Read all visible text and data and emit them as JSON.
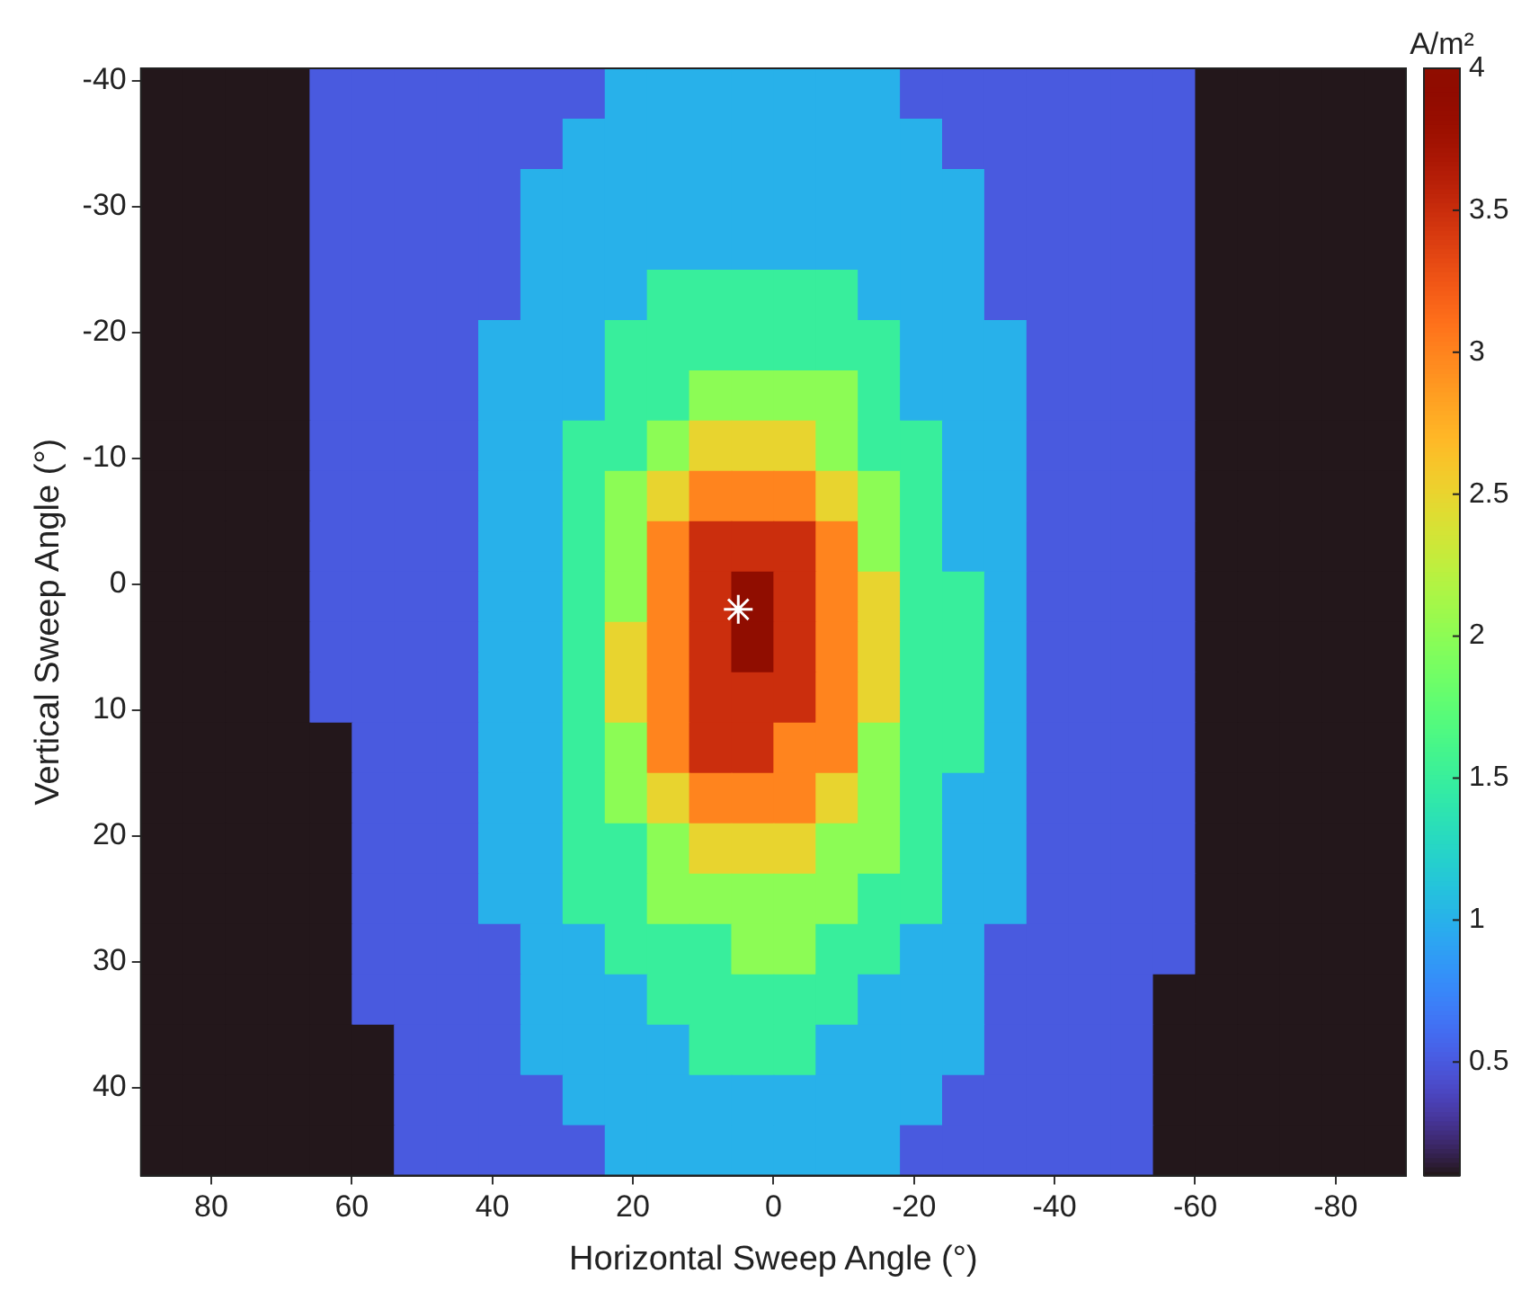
{
  "chart_data": {
    "type": "heatmap",
    "xlabel": "Horizontal Sweep Angle (°)",
    "ylabel": "Vertical Sweep Angle (°)",
    "clabel": "A/m²",
    "xlim": [
      90,
      -90
    ],
    "ylim": [
      47,
      -41
    ],
    "xticks": [
      80,
      60,
      40,
      20,
      0,
      -20,
      -40,
      -60,
      -80
    ],
    "yticks": [
      -40,
      -30,
      -20,
      -10,
      0,
      10,
      20,
      30,
      40
    ],
    "clim": [
      0.1,
      4
    ],
    "cticks": [
      0.5,
      1,
      1.5,
      2,
      2.5,
      3,
      3.5,
      4
    ],
    "x": [
      87,
      81,
      75,
      69,
      63,
      57,
      51,
      45,
      39,
      33,
      27,
      21,
      15,
      9,
      3,
      -3,
      -9,
      -15,
      -21,
      -27,
      -33,
      -39,
      -45,
      -51,
      -57,
      -63,
      -69,
      -75,
      -81,
      -87
    ],
    "y": [
      -39,
      -35,
      -31,
      -27,
      -23,
      -19,
      -15,
      -11,
      -7,
      -3,
      1,
      5,
      9,
      13,
      17,
      21,
      25,
      29,
      33,
      37,
      41,
      45
    ],
    "cells": [
      [
        0.1,
        0.1,
        0.1,
        0.1,
        0.5,
        0.5,
        0.5,
        0.5,
        0.5,
        0.5,
        0.5,
        1,
        1,
        1,
        1,
        1,
        1,
        1,
        0.5,
        0.5,
        0.5,
        0.5,
        0.5,
        0.5,
        0.5,
        0.1,
        0.1,
        0.1,
        0.1,
        0.1
      ],
      [
        0.1,
        0.1,
        0.1,
        0.1,
        0.5,
        0.5,
        0.5,
        0.5,
        0.5,
        0.5,
        1,
        1,
        1,
        1,
        1,
        1,
        1,
        1,
        1,
        0.5,
        0.5,
        0.5,
        0.5,
        0.5,
        0.5,
        0.1,
        0.1,
        0.1,
        0.1,
        0.1
      ],
      [
        0.1,
        0.1,
        0.1,
        0.1,
        0.5,
        0.5,
        0.5,
        0.5,
        0.5,
        1,
        1,
        1,
        1,
        1,
        1,
        1,
        1,
        1,
        1,
        1,
        0.5,
        0.5,
        0.5,
        0.5,
        0.5,
        0.1,
        0.1,
        0.1,
        0.1,
        0.1
      ],
      [
        0.1,
        0.1,
        0.1,
        0.1,
        0.5,
        0.5,
        0.5,
        0.5,
        0.5,
        1,
        1,
        1,
        1,
        1,
        1,
        1,
        1,
        1,
        1,
        1,
        0.5,
        0.5,
        0.5,
        0.5,
        0.5,
        0.1,
        0.1,
        0.1,
        0.1,
        0.1
      ],
      [
        0.1,
        0.1,
        0.1,
        0.1,
        0.5,
        0.5,
        0.5,
        0.5,
        0.5,
        1,
        1,
        1,
        1.5,
        1.5,
        1.5,
        1.5,
        1.5,
        1,
        1,
        1,
        0.5,
        0.5,
        0.5,
        0.5,
        0.5,
        0.1,
        0.1,
        0.1,
        0.1,
        0.1
      ],
      [
        0.1,
        0.1,
        0.1,
        0.1,
        0.5,
        0.5,
        0.5,
        0.5,
        1,
        1,
        1,
        1.5,
        1.5,
        1.5,
        1.5,
        1.5,
        1.5,
        1.5,
        1,
        1,
        1,
        0.5,
        0.5,
        0.5,
        0.5,
        0.1,
        0.1,
        0.1,
        0.1,
        0.1
      ],
      [
        0.1,
        0.1,
        0.1,
        0.1,
        0.5,
        0.5,
        0.5,
        0.5,
        1,
        1,
        1,
        1.5,
        1.5,
        2,
        2,
        2,
        2,
        1.5,
        1,
        1,
        1,
        0.5,
        0.5,
        0.5,
        0.5,
        0.1,
        0.1,
        0.1,
        0.1,
        0.1
      ],
      [
        0.1,
        0.1,
        0.1,
        0.1,
        0.5,
        0.5,
        0.5,
        0.5,
        1,
        1,
        1.5,
        1.5,
        2,
        2.5,
        2.5,
        2.5,
        2,
        1.5,
        1.5,
        1,
        1,
        0.5,
        0.5,
        0.5,
        0.5,
        0.1,
        0.1,
        0.1,
        0.1,
        0.1
      ],
      [
        0.1,
        0.1,
        0.1,
        0.1,
        0.5,
        0.5,
        0.5,
        0.5,
        1,
        1,
        1.5,
        2,
        2.5,
        3,
        3,
        3,
        2.5,
        2,
        1.5,
        1,
        1,
        0.5,
        0.5,
        0.5,
        0.5,
        0.1,
        0.1,
        0.1,
        0.1,
        0.1
      ],
      [
        0.1,
        0.1,
        0.1,
        0.1,
        0.5,
        0.5,
        0.5,
        0.5,
        1,
        1,
        1.5,
        2,
        3,
        3.5,
        3.5,
        3.5,
        3,
        2,
        1.5,
        1,
        1,
        0.5,
        0.5,
        0.5,
        0.5,
        0.1,
        0.1,
        0.1,
        0.1,
        0.1
      ],
      [
        0.1,
        0.1,
        0.1,
        0.1,
        0.5,
        0.5,
        0.5,
        0.5,
        1,
        1,
        1.5,
        2,
        3,
        3.5,
        4,
        3.5,
        3,
        2.5,
        1.5,
        1.5,
        1,
        0.5,
        0.5,
        0.5,
        0.5,
        0.1,
        0.1,
        0.1,
        0.1,
        0.1
      ],
      [
        0.1,
        0.1,
        0.1,
        0.1,
        0.5,
        0.5,
        0.5,
        0.5,
        1,
        1,
        1.5,
        2.5,
        3,
        3.5,
        4,
        3.5,
        3,
        2.5,
        1.5,
        1.5,
        1,
        0.5,
        0.5,
        0.5,
        0.5,
        0.1,
        0.1,
        0.1,
        0.1,
        0.1
      ],
      [
        0.1,
        0.1,
        0.1,
        0.1,
        0.5,
        0.5,
        0.5,
        0.5,
        1,
        1,
        1.5,
        2.5,
        3,
        3.5,
        3.5,
        3.5,
        3,
        2.5,
        1.5,
        1.5,
        1,
        0.5,
        0.5,
        0.5,
        0.5,
        0.1,
        0.1,
        0.1,
        0.1,
        0.1
      ],
      [
        0.1,
        0.1,
        0.1,
        0.1,
        0.1,
        0.5,
        0.5,
        0.5,
        1,
        1,
        1.5,
        2,
        3,
        3.5,
        3.5,
        3,
        3,
        2,
        1.5,
        1.5,
        1,
        0.5,
        0.5,
        0.5,
        0.5,
        0.1,
        0.1,
        0.1,
        0.1,
        0.1
      ],
      [
        0.1,
        0.1,
        0.1,
        0.1,
        0.1,
        0.5,
        0.5,
        0.5,
        1,
        1,
        1.5,
        2,
        2.5,
        3,
        3,
        3,
        2.5,
        2,
        1.5,
        1,
        1,
        0.5,
        0.5,
        0.5,
        0.5,
        0.1,
        0.1,
        0.1,
        0.1,
        0.1
      ],
      [
        0.1,
        0.1,
        0.1,
        0.1,
        0.1,
        0.5,
        0.5,
        0.5,
        1,
        1,
        1.5,
        1.5,
        2,
        2.5,
        2.5,
        2.5,
        2,
        2,
        1.5,
        1,
        1,
        0.5,
        0.5,
        0.5,
        0.5,
        0.1,
        0.1,
        0.1,
        0.1,
        0.1
      ],
      [
        0.1,
        0.1,
        0.1,
        0.1,
        0.1,
        0.5,
        0.5,
        0.5,
        1,
        1,
        1.5,
        1.5,
        2,
        2,
        2,
        2,
        2,
        1.5,
        1.5,
        1,
        1,
        0.5,
        0.5,
        0.5,
        0.5,
        0.1,
        0.1,
        0.1,
        0.1,
        0.1
      ],
      [
        0.1,
        0.1,
        0.1,
        0.1,
        0.1,
        0.5,
        0.5,
        0.5,
        0.5,
        1,
        1,
        1.5,
        1.5,
        1.5,
        2,
        2,
        1.5,
        1.5,
        1,
        1,
        0.5,
        0.5,
        0.5,
        0.5,
        0.5,
        0.1,
        0.1,
        0.1,
        0.1,
        0.1
      ],
      [
        0.1,
        0.1,
        0.1,
        0.1,
        0.1,
        0.5,
        0.5,
        0.5,
        0.5,
        1,
        1,
        1,
        1.5,
        1.5,
        1.5,
        1.5,
        1.5,
        1,
        1,
        1,
        0.5,
        0.5,
        0.5,
        0.5,
        0.1,
        0.1,
        0.1,
        0.1,
        0.1,
        0.1
      ],
      [
        0.1,
        0.1,
        0.1,
        0.1,
        0.1,
        0.1,
        0.5,
        0.5,
        0.5,
        1,
        1,
        1,
        1,
        1.5,
        1.5,
        1.5,
        1,
        1,
        1,
        1,
        0.5,
        0.5,
        0.5,
        0.5,
        0.1,
        0.1,
        0.1,
        0.1,
        0.1,
        0.1
      ],
      [
        0.1,
        0.1,
        0.1,
        0.1,
        0.1,
        0.1,
        0.5,
        0.5,
        0.5,
        0.5,
        1,
        1,
        1,
        1,
        1,
        1,
        1,
        1,
        1,
        0.5,
        0.5,
        0.5,
        0.5,
        0.5,
        0.1,
        0.1,
        0.1,
        0.1,
        0.1,
        0.1
      ],
      [
        0.1,
        0.1,
        0.1,
        0.1,
        0.1,
        0.1,
        0.5,
        0.5,
        0.5,
        0.5,
        0.5,
        1,
        1,
        1,
        1,
        1,
        1,
        1,
        0.5,
        0.5,
        0.5,
        0.5,
        0.5,
        0.5,
        0.1,
        0.1,
        0.1,
        0.1,
        0.1,
        0.1
      ]
    ],
    "series": [
      {
        "type": "scatter",
        "x": [
          5
        ],
        "values": [
          2
        ],
        "color": "#ffffff",
        "marker": "cross"
      }
    ]
  }
}
